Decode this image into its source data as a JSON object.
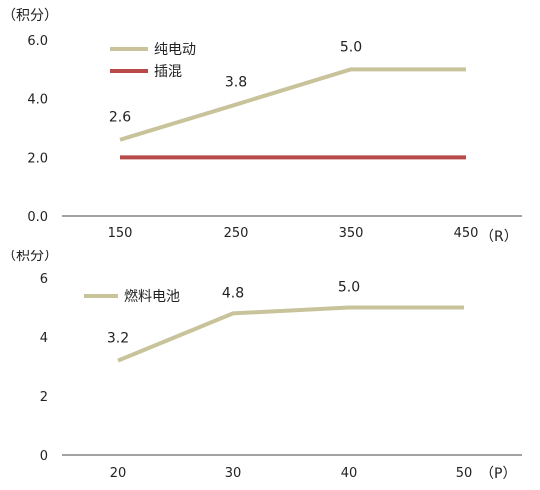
{
  "chart_data": [
    {
      "type": "line",
      "ylabel": "（积分）",
      "xunit": "（R）",
      "categories": [
        "150",
        "250",
        "350",
        "450"
      ],
      "yticks": [
        "0.0",
        "2.0",
        "4.0",
        "6.0"
      ],
      "ylim": [
        0,
        6
      ],
      "grid": false,
      "legend_position": "top-left",
      "series": [
        {
          "name": "纯电动",
          "color": "#C8C39A",
          "values": [
            2.6,
            3.8,
            5.0,
            5.0
          ],
          "labels": [
            "2.6",
            "3.8",
            "5.0",
            ""
          ]
        },
        {
          "name": "插混",
          "color": "#B84A48",
          "values": [
            2.0,
            2.0,
            2.0,
            2.0
          ],
          "labels": [
            "",
            "",
            "",
            ""
          ]
        }
      ]
    },
    {
      "type": "line",
      "ylabel": "（积分）",
      "xunit": "（P）",
      "categories": [
        "20",
        "30",
        "40",
        "50"
      ],
      "yticks": [
        "0",
        "2",
        "4",
        "6"
      ],
      "ylim": [
        0,
        6
      ],
      "grid": false,
      "legend_position": "top-left",
      "series": [
        {
          "name": "燃料电池",
          "color": "#C8C39A",
          "values": [
            3.2,
            4.8,
            5.0,
            5.0
          ],
          "labels": [
            "3.2",
            "4.8",
            "5.0",
            ""
          ]
        }
      ]
    }
  ]
}
